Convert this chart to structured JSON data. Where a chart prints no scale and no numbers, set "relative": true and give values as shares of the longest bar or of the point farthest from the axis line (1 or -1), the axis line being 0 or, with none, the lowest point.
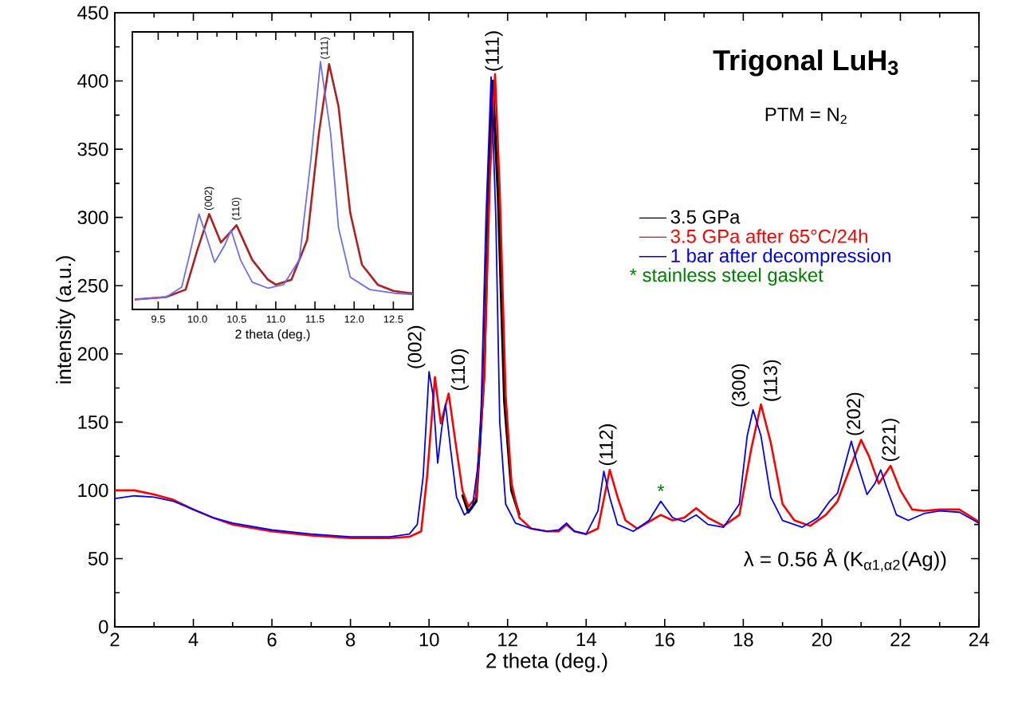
{
  "chart_data": [
    {
      "type": "line",
      "title": "Trigonal LuH$_{3}$",
      "subtitle": "PTM = N$_{2}$",
      "xlabel": "2 theta (deg.)",
      "ylabel": "intensity (a.u.)",
      "xlim": [
        2,
        24
      ],
      "ylim": [
        0,
        450
      ],
      "xticks": [
        2,
        4,
        6,
        8,
        10,
        12,
        14,
        16,
        18,
        20,
        22,
        24
      ],
      "yticks": [
        0,
        50,
        100,
        150,
        200,
        250,
        300,
        350,
        400,
        450
      ],
      "legend": "top right",
      "series": [
        {
          "name": "3.5 GPa",
          "color": "#000000",
          "x": [
            10.85,
            11.0,
            11.2,
            11.4,
            11.53,
            11.62,
            11.76,
            11.92,
            12.1,
            12.3
          ],
          "values": [
            97,
            84,
            92,
            185,
            335,
            400,
            315,
            165,
            100,
            82
          ]
        },
        {
          "name": "3.5 GPa after 65°C/24h",
          "color": "#ff0000",
          "x": [
            2,
            2.5,
            3,
            3.5,
            4,
            4.5,
            5,
            6,
            7,
            8,
            9,
            9.5,
            9.8,
            9.95,
            10.15,
            10.3,
            10.5,
            10.65,
            10.85,
            11.0,
            11.2,
            11.4,
            11.55,
            11.68,
            11.8,
            11.95,
            12.1,
            12.3,
            12.6,
            13,
            13.3,
            13.5,
            13.7,
            14,
            14.3,
            14.6,
            14.8,
            15.0,
            15.3,
            15.6,
            15.9,
            16.2,
            16.5,
            16.8,
            17.1,
            17.5,
            17.9,
            18.2,
            18.45,
            18.7,
            19.0,
            19.3,
            19.7,
            20.1,
            20.4,
            20.7,
            21.0,
            21.2,
            21.45,
            21.75,
            22.0,
            22.3,
            22.6,
            23,
            23.5,
            24
          ],
          "values": [
            100,
            100,
            97,
            93,
            86,
            80,
            75,
            70,
            67,
            65,
            65,
            66,
            70,
            110,
            183,
            149,
            171,
            140,
            100,
            88,
            95,
            180,
            330,
            405,
            320,
            170,
            105,
            80,
            72,
            70,
            70,
            75,
            70,
            68,
            72,
            115,
            95,
            78,
            72,
            77,
            82,
            78,
            80,
            87,
            80,
            74,
            82,
            130,
            163,
            135,
            90,
            78,
            74,
            82,
            92,
            115,
            137,
            125,
            105,
            118,
            100,
            86,
            85,
            86,
            86,
            77
          ]
        },
        {
          "name": "1 bar after decompression",
          "color": "#0000ff",
          "x": [
            2,
            2.5,
            3,
            3.5,
            4,
            4.5,
            5,
            6,
            7,
            8,
            9,
            9.5,
            9.7,
            9.85,
            10.0,
            10.1,
            10.22,
            10.32,
            10.42,
            10.55,
            10.7,
            10.9,
            11.1,
            11.3,
            11.45,
            11.58,
            11.7,
            11.8,
            11.95,
            12.2,
            12.6,
            13,
            13.3,
            13.5,
            13.7,
            14,
            14.3,
            14.45,
            14.6,
            14.8,
            15.2,
            15.6,
            15.9,
            16.2,
            16.5,
            16.8,
            17.1,
            17.5,
            17.9,
            18.1,
            18.25,
            18.45,
            18.7,
            19,
            19.5,
            19.9,
            20.2,
            20.4,
            20.6,
            20.75,
            20.9,
            21.15,
            21.35,
            21.5,
            21.65,
            21.9,
            22.2,
            22.6,
            23,
            23.5,
            24
          ],
          "values": [
            94,
            96,
            95,
            92,
            86,
            80,
            76,
            71,
            68,
            66,
            66,
            68,
            75,
            110,
            187,
            170,
            120,
            145,
            163,
            130,
            95,
            82,
            87,
            130,
            300,
            403,
            300,
            150,
            90,
            76,
            72,
            70,
            71,
            76,
            70,
            68,
            85,
            114,
            95,
            75,
            70,
            78,
            92,
            80,
            77,
            82,
            75,
            73,
            90,
            140,
            159,
            140,
            95,
            78,
            73,
            80,
            92,
            98,
            120,
            136,
            120,
            97,
            105,
            115,
            102,
            82,
            78,
            83,
            85,
            84,
            76
          ]
        }
      ],
      "annotations": [
        "* stainless steel gasket",
        "λ = 0.56 Å (K$_{α1,α2}$(Ag))",
        {
          "text": "(002)",
          "x": 10.0,
          "y": 187
        },
        {
          "text": "(110)",
          "x": 10.5,
          "y": 171
        },
        {
          "text": "(111)",
          "x": 11.65,
          "y": 405
        },
        {
          "text": "(112)",
          "x": 14.55,
          "y": 116
        },
        {
          "text": "*",
          "x": 15.9,
          "y": 93
        },
        {
          "text": "(300)",
          "x": 18.25,
          "y": 159
        },
        {
          "text": "(113)",
          "x": 18.45,
          "y": 163
        },
        {
          "text": "(202)",
          "x": 20.85,
          "y": 138
        },
        {
          "text": "(221)",
          "x": 21.75,
          "y": 119
        }
      ]
    },
    {
      "type": "line",
      "relative": true,
      "tick_labels": "x",
      "xlabel": "2 theta (deg.)",
      "xlim": [
        9.17,
        12.75
      ],
      "xticks": [
        9.5,
        {
          "value": 10,
          "label": "10.0"
        },
        10.5,
        {
          "value": 11,
          "label": "11.0"
        },
        11.5,
        {
          "value": 12,
          "label": "12.0"
        },
        12.5
      ],
      "series": [
        {
          "color": "#b02020",
          "x": [
            9.2,
            9.6,
            9.85,
            10.0,
            10.15,
            10.3,
            10.5,
            10.7,
            10.9,
            11.0,
            11.2,
            11.4,
            11.55,
            11.68,
            11.8,
            11.95,
            12.1,
            12.3,
            12.5,
            12.75
          ],
          "values": [
            0.04,
            0.05,
            0.08,
            0.24,
            0.385,
            0.27,
            0.34,
            0.2,
            0.12,
            0.1,
            0.12,
            0.28,
            0.71,
            0.99,
            0.82,
            0.39,
            0.18,
            0.1,
            0.075,
            0.064
          ]
        },
        {
          "color": "#6e6ef5",
          "x": [
            9.2,
            9.6,
            9.8,
            9.9,
            10.02,
            10.1,
            10.22,
            10.35,
            10.43,
            10.55,
            10.7,
            10.9,
            11.1,
            11.3,
            11.45,
            11.57,
            11.7,
            11.8,
            11.95,
            12.2,
            12.5,
            12.75
          ],
          "values": [
            0.04,
            0.05,
            0.09,
            0.22,
            0.385,
            0.31,
            0.19,
            0.26,
            0.32,
            0.2,
            0.11,
            0.086,
            0.1,
            0.2,
            0.61,
            1.0,
            0.71,
            0.33,
            0.13,
            0.08,
            0.066,
            0.06
          ]
        }
      ],
      "annotations": [
        {
          "text": "(002)",
          "x": 10.15,
          "y": 0.39
        },
        {
          "text": "(110)",
          "x": 10.5,
          "y": 0.35
        },
        {
          "text": "(111)",
          "x": 11.63,
          "y": 1.0
        }
      ]
    }
  ]
}
